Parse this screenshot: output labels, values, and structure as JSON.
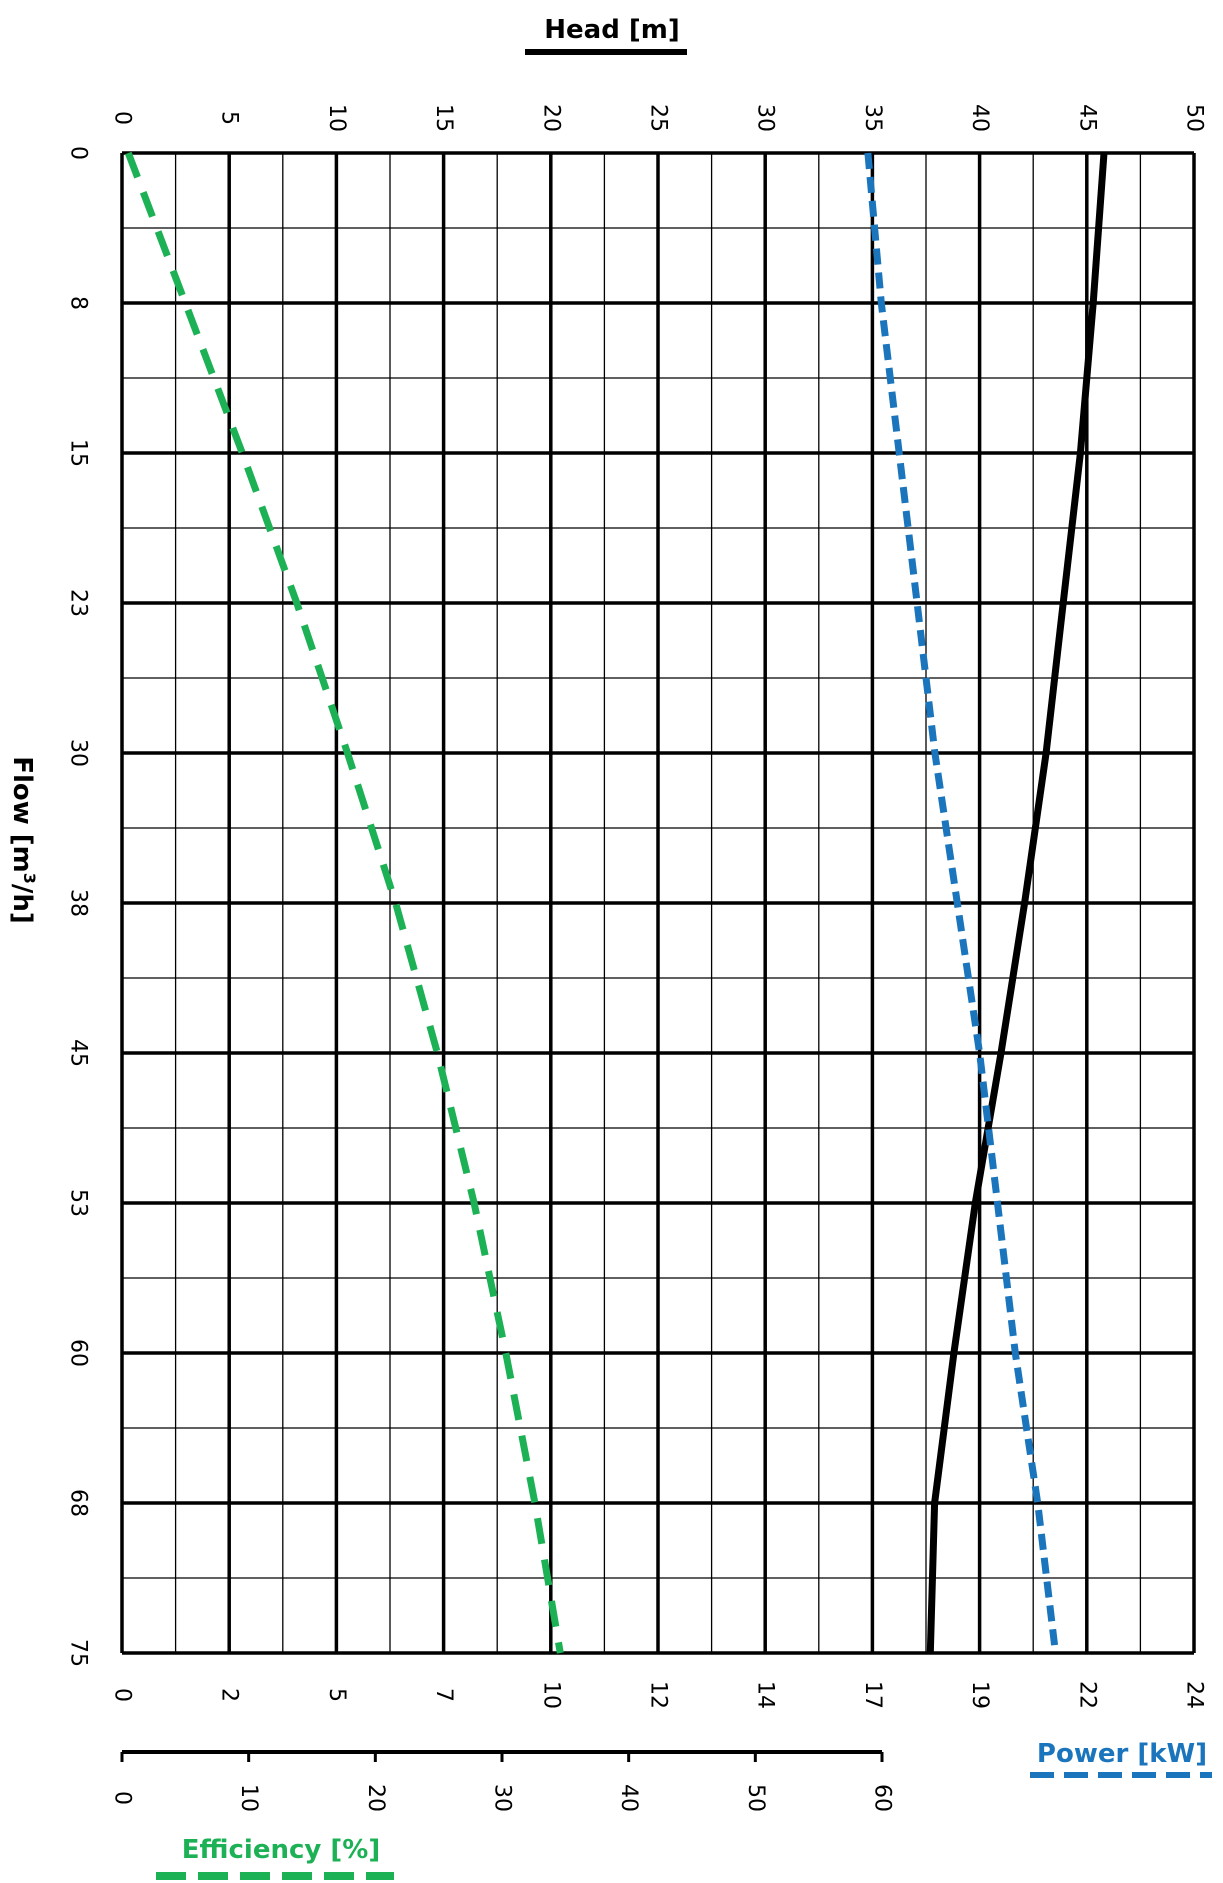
{
  "chart_data": {
    "type": "line",
    "title": "",
    "rotated": true,
    "flow_axis": {
      "label": "Flow [m³/h]",
      "label_text": "Flow [m",
      "label_sup": "3",
      "label_tail": "/h]",
      "ticks": [
        "0",
        "8",
        "15",
        "23",
        "30",
        "38",
        "45",
        "53",
        "60",
        "68",
        "75"
      ],
      "range": [
        0,
        75
      ]
    },
    "head_axis": {
      "label": "Head [m]",
      "ticks": [
        "0",
        "5",
        "10",
        "15",
        "20",
        "25",
        "30",
        "35",
        "40",
        "45",
        "50"
      ],
      "range": [
        0,
        50
      ]
    },
    "power_axis": {
      "label": "Power [kW]",
      "ticks": [
        "0",
        "2",
        "5",
        "7",
        "10",
        "12",
        "14",
        "17",
        "19",
        "22",
        "24"
      ],
      "range": [
        0,
        24
      ]
    },
    "efficiency_axis": {
      "label": "Efficiency [%]",
      "ticks": [
        "0",
        "10",
        "20",
        "30",
        "40",
        "50",
        "60"
      ],
      "range": [
        0,
        60
      ]
    },
    "series": [
      {
        "name": "Head [m]",
        "axis": "head",
        "style": "solid",
        "color": "#000000",
        "x": [
          0,
          7.5,
          15,
          22.5,
          30,
          37.5,
          45,
          52.5,
          60,
          67.5,
          75
        ],
        "y": [
          45.8,
          45.3,
          44.7,
          43.9,
          43.1,
          42.1,
          41.0,
          39.8,
          38.8,
          37.9,
          37.7
        ]
      },
      {
        "name": "Power [kW]",
        "axis": "power",
        "style": "dashed",
        "color": "#1a75bc",
        "x": [
          0,
          7.5,
          15,
          22.5,
          30,
          37.5,
          45,
          52.5,
          60,
          67.5,
          75
        ],
        "y": [
          16.7,
          17.0,
          17.4,
          17.8,
          18.2,
          18.7,
          19.2,
          19.6,
          20.0,
          20.5,
          20.9
        ]
      },
      {
        "name": "Efficiency [%]",
        "axis": "efficiency",
        "style": "dashed",
        "color": "#1db155",
        "x": [
          0,
          7.5,
          15,
          22.5,
          30,
          37.5,
          45,
          52.5,
          60,
          67.5,
          75
        ],
        "y": [
          0.5,
          5.0,
          9.5,
          13.8,
          17.8,
          21.6,
          24.9,
          27.8,
          30.3,
          32.6,
          34.6
        ]
      }
    ],
    "grid": true,
    "legend": "axis-labels"
  }
}
